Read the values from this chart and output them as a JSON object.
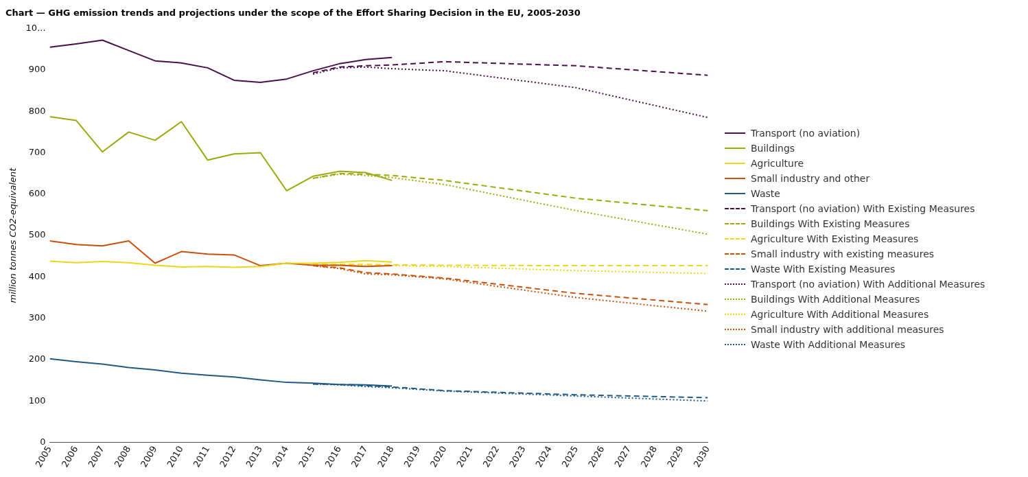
{
  "chart_data": {
    "type": "line",
    "title": "Chart — GHG emission trends and projections under the scope of the Effort Sharing Decision in the EU, 2005-2030",
    "ylabel": "million tonnes CO2-equivalent",
    "xlim": [
      2005,
      2030
    ],
    "xticks": [
      2005,
      2006,
      2007,
      2008,
      2009,
      2010,
      2011,
      2012,
      2013,
      2014,
      2015,
      2016,
      2017,
      2018,
      2019,
      2020,
      2021,
      2022,
      2023,
      2024,
      2025,
      2026,
      2027,
      2028,
      2029,
      2030
    ],
    "ylim": [
      0,
      1000
    ],
    "yticks": [
      0,
      100,
      200,
      300,
      400,
      500,
      600,
      700,
      800,
      900,
      {
        "value": 1000,
        "label": "10..."
      }
    ],
    "grid": false,
    "legend": "right",
    "marker": "none",
    "series": [
      {
        "name": "Transport (no aviation)",
        "color": "#4a0e4b",
        "line_style": "solid",
        "x": [
          2005,
          2006,
          2007,
          2008,
          2009,
          2010,
          2011,
          2012,
          2013,
          2014,
          2015,
          2016,
          2017,
          2018
        ],
        "values": [
          955,
          963,
          972,
          947,
          922,
          917,
          905,
          875,
          870,
          878,
          898,
          915,
          925,
          930
        ]
      },
      {
        "name": "Buildings",
        "color": "#9aaa0a",
        "line_style": "solid",
        "x": [
          2005,
          2006,
          2007,
          2008,
          2009,
          2010,
          2011,
          2012,
          2013,
          2014,
          2015,
          2016,
          2017,
          2018
        ],
        "values": [
          787,
          778,
          702,
          750,
          730,
          775,
          682,
          697,
          700,
          608,
          643,
          655,
          652,
          633
        ]
      },
      {
        "name": "Agriculture",
        "color": "#ecd51a",
        "line_style": "solid",
        "x": [
          2005,
          2006,
          2007,
          2008,
          2009,
          2010,
          2011,
          2012,
          2013,
          2014,
          2015,
          2016,
          2017,
          2018
        ],
        "values": [
          438,
          434,
          437,
          434,
          428,
          424,
          425,
          423,
          425,
          433,
          433,
          435,
          439,
          436
        ]
      },
      {
        "name": "Small industry and other",
        "color": "#c8500a",
        "line_style": "solid",
        "x": [
          2005,
          2006,
          2007,
          2008,
          2009,
          2010,
          2011,
          2012,
          2013,
          2014,
          2015,
          2016,
          2017,
          2018
        ],
        "values": [
          487,
          478,
          475,
          487,
          433,
          461,
          455,
          453,
          427,
          433,
          428,
          428,
          425,
          427
        ]
      },
      {
        "name": "Waste",
        "color": "#1f5a87",
        "line_style": "solid",
        "x": [
          2005,
          2006,
          2007,
          2008,
          2009,
          2010,
          2011,
          2012,
          2013,
          2014,
          2015,
          2016,
          2017,
          2018
        ],
        "values": [
          202,
          195,
          189,
          181,
          175,
          167,
          162,
          158,
          151,
          145,
          143,
          140,
          139,
          136
        ]
      },
      {
        "name": "Transport (no aviation) With Existing Measures",
        "color": "#4a0e4b",
        "line_style": "dashed",
        "x": [
          2015,
          2016,
          2017,
          2018,
          2020,
          2025,
          2030
        ],
        "values": [
          893,
          907,
          910,
          912,
          920,
          910,
          887
        ]
      },
      {
        "name": "Buildings With Existing Measures",
        "color": "#9aaa0a",
        "line_style": "dashed",
        "x": [
          2015,
          2016,
          2017,
          2018,
          2020,
          2025,
          2030
        ],
        "values": [
          638,
          650,
          648,
          645,
          633,
          590,
          560
        ]
      },
      {
        "name": "Agriculture With Existing Measures",
        "color": "#ecd51a",
        "line_style": "dashed",
        "x": [
          2015,
          2016,
          2017,
          2018,
          2020,
          2025,
          2030
        ],
        "values": [
          430,
          430,
          430,
          429,
          428,
          427,
          427
        ]
      },
      {
        "name": "Small industry with existing measures",
        "color": "#c8500a",
        "line_style": "dashed",
        "x": [
          2015,
          2016,
          2017,
          2018,
          2020,
          2025,
          2030
        ],
        "values": [
          427,
          422,
          410,
          407,
          397,
          360,
          333
        ]
      },
      {
        "name": "Waste With Existing Measures",
        "color": "#1f5a87",
        "line_style": "dashed",
        "x": [
          2015,
          2016,
          2017,
          2018,
          2020,
          2025,
          2030
        ],
        "values": [
          141,
          140,
          137,
          134,
          125,
          115,
          108
        ]
      },
      {
        "name": "Transport (no aviation) With Additional Measures",
        "color": "#4a0e4b",
        "line_style": "dotted",
        "x": [
          2015,
          2016,
          2017,
          2018,
          2020,
          2025,
          2030
        ],
        "values": [
          890,
          905,
          907,
          903,
          898,
          857,
          785
        ]
      },
      {
        "name": "Buildings With Additional Measures",
        "color": "#9aaa0a",
        "line_style": "dotted",
        "x": [
          2015,
          2016,
          2017,
          2018,
          2020,
          2025,
          2030
        ],
        "values": [
          638,
          648,
          645,
          640,
          623,
          560,
          503
        ]
      },
      {
        "name": "Agriculture With Additional Measures",
        "color": "#ecd51a",
        "line_style": "dotted",
        "x": [
          2015,
          2016,
          2017,
          2018,
          2020,
          2025,
          2030
        ],
        "values": [
          428,
          428,
          428,
          427,
          425,
          415,
          408
        ]
      },
      {
        "name": "Small industry with additional measures",
        "color": "#c8500a",
        "line_style": "dotted",
        "x": [
          2015,
          2016,
          2017,
          2018,
          2020,
          2025,
          2030
        ],
        "values": [
          427,
          420,
          407,
          405,
          395,
          350,
          317
        ]
      },
      {
        "name": "Waste With Additional Measures",
        "color": "#1f5a87",
        "line_style": "dotted",
        "x": [
          2015,
          2016,
          2017,
          2018,
          2020,
          2025,
          2030
        ],
        "values": [
          141,
          139,
          135,
          132,
          124,
          112,
          100
        ]
      }
    ]
  }
}
